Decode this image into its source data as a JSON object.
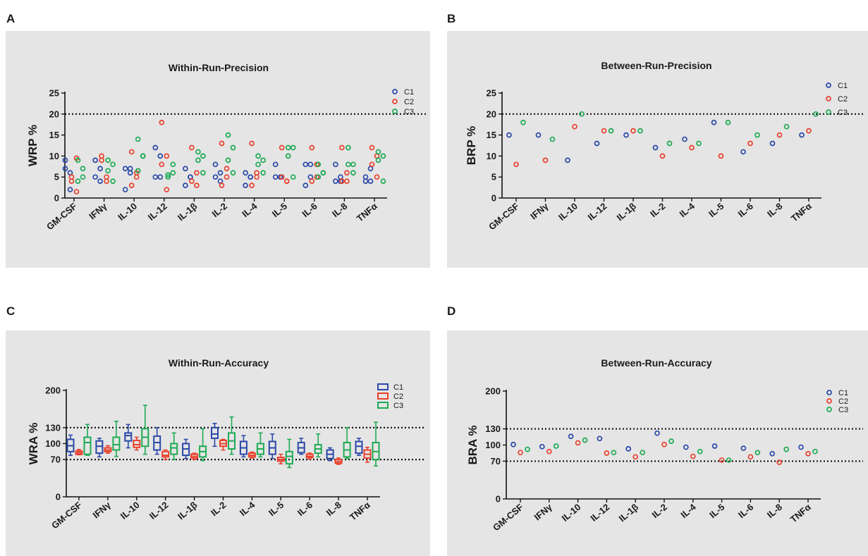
{
  "panel_labels": [
    "A",
    "B",
    "C",
    "D"
  ],
  "colors": {
    "C1": "#2a48a8",
    "C2": "#e8412c",
    "C3": "#1eaa55"
  },
  "chart_data": [
    {
      "panel": "A",
      "type": "scatter",
      "title": "Within-Run-Precision",
      "ylabel": "WRP %",
      "xlabel": "",
      "ylim": [
        0,
        25
      ],
      "yticks": [
        0,
        5,
        10,
        15,
        20,
        25
      ],
      "reference_lines": [
        20
      ],
      "legend_position": "top-right",
      "categories": [
        "GM-CSF",
        "IFNγ",
        "IL-10",
        "IL-12",
        "IL-1β",
        "IL-2",
        "IL-4",
        "IL-5",
        "IL-6",
        "IL-8",
        "TNFα"
      ],
      "series": [
        {
          "name": "C1",
          "values": [
            [
              7,
              6,
              9,
              2
            ],
            [
              9,
              7,
              5,
              4
            ],
            [
              7,
              6,
              2,
              7
            ],
            [
              12,
              10,
              5,
              5
            ],
            [
              7,
              5,
              3,
              5
            ],
            [
              8,
              6,
              5,
              4
            ],
            [
              6,
              5,
              3,
              5
            ],
            [
              8,
              5,
              5,
              5
            ],
            [
              8,
              5,
              3,
              8
            ],
            [
              8,
              5,
              4,
              4
            ],
            [
              5,
              7,
              4,
              4
            ]
          ]
        },
        {
          "name": "C2",
          "values": [
            [
              5,
              9.5,
              4,
              1.5
            ],
            [
              9,
              4,
              10,
              5
            ],
            [
              11,
              5,
              3,
              6
            ],
            [
              18,
              10,
              8,
              2
            ],
            [
              12,
              6,
              4,
              3
            ],
            [
              13,
              7,
              3,
              5
            ],
            [
              13,
              6,
              3,
              5
            ],
            [
              12,
              4,
              5,
              4
            ],
            [
              12,
              8,
              4,
              5
            ],
            [
              12,
              6,
              4,
              4
            ],
            [
              12,
              10,
              8,
              5
            ]
          ]
        },
        {
          "name": "C3",
          "values": [
            [
              9,
              7,
              4,
              5
            ],
            [
              9,
              8,
              6.5,
              4
            ],
            [
              14,
              10,
              6.5,
              10
            ],
            [
              5.5,
              8,
              5,
              6
            ],
            [
              11,
              10,
              9,
              6
            ],
            [
              15,
              12,
              9,
              6
            ],
            [
              10,
              9,
              8,
              6
            ],
            [
              12,
              12,
              10,
              5
            ],
            [
              8,
              6,
              5,
              6
            ],
            [
              12,
              8,
              8,
              6
            ],
            [
              11,
              10,
              9,
              4
            ]
          ]
        }
      ]
    },
    {
      "panel": "B",
      "type": "scatter",
      "title": "Between-Run-Precision",
      "ylabel": "BRP %",
      "xlabel": "",
      "ylim": [
        0,
        25
      ],
      "yticks": [
        0,
        5,
        10,
        15,
        20,
        25
      ],
      "reference_lines": [
        20
      ],
      "legend_position": "top-right",
      "categories": [
        "GM-CSF",
        "IFNγ",
        "IL-10",
        "IL-12",
        "IL-1β",
        "IL-2",
        "IL-4",
        "IL-5",
        "IL-6",
        "IL-8",
        "TNFα"
      ],
      "series": [
        {
          "name": "C1",
          "values": [
            15,
            15,
            9,
            13,
            15,
            12,
            14,
            18,
            11,
            13,
            15
          ]
        },
        {
          "name": "C2",
          "values": [
            8,
            9,
            17,
            16,
            16,
            10,
            12,
            10,
            13,
            15,
            16
          ]
        },
        {
          "name": "C3",
          "values": [
            18,
            14,
            20,
            16,
            16,
            13,
            13,
            18,
            15,
            17,
            20
          ]
        }
      ]
    },
    {
      "panel": "C",
      "type": "box",
      "title": "Within-Run-Accuracy",
      "ylabel": "WRA %",
      "xlabel": "",
      "ylim": [
        0,
        200
      ],
      "yticks": [
        0,
        70,
        100,
        130,
        200
      ],
      "reference_lines": [
        70,
        130
      ],
      "legend_position": "top-right",
      "categories": [
        "GM-CSF",
        "IFNγ",
        "IL-10",
        "IL-12",
        "IL-1β",
        "IL-2",
        "IL-4",
        "IL-5",
        "IL-6",
        "IL-8",
        "TNFα"
      ],
      "series": [
        {
          "name": "C1",
          "min": [
            78,
            75,
            92,
            80,
            72,
            95,
            75,
            72,
            80,
            68,
            78
          ],
          "q1": [
            85,
            82,
            105,
            88,
            78,
            110,
            80,
            80,
            83,
            72,
            82
          ],
          "median": [
            96,
            95,
            115,
            102,
            90,
            118,
            92,
            92,
            92,
            80,
            95
          ],
          "q3": [
            108,
            105,
            120,
            114,
            100,
            130,
            104,
            104,
            102,
            88,
            104
          ],
          "max": [
            116,
            110,
            136,
            130,
            108,
            138,
            115,
            118,
            110,
            92,
            110
          ]
        },
        {
          "name": "C2",
          "min": [
            79,
            82,
            88,
            70,
            70,
            88,
            73,
            62,
            71,
            61,
            65
          ],
          "q1": [
            80,
            85,
            93,
            75,
            73,
            95,
            75,
            67,
            74,
            63,
            73
          ],
          "median": [
            83,
            88,
            98,
            78,
            76,
            100,
            78,
            70,
            76,
            66,
            80
          ],
          "q3": [
            86,
            92,
            106,
            85,
            80,
            106,
            82,
            74,
            80,
            70,
            88
          ],
          "max": [
            89,
            96,
            112,
            88,
            82,
            108,
            84,
            80,
            82,
            73,
            93
          ]
        },
        {
          "name": "C3",
          "min": [
            78,
            76,
            80,
            70,
            68,
            80,
            75,
            55,
            75,
            72,
            58
          ],
          "q1": [
            80,
            88,
            95,
            80,
            75,
            90,
            80,
            62,
            82,
            75,
            70
          ],
          "median": [
            102,
            98,
            112,
            92,
            85,
            105,
            90,
            76,
            90,
            88,
            85
          ],
          "q3": [
            112,
            112,
            128,
            100,
            95,
            120,
            100,
            85,
            98,
            102,
            102
          ],
          "max": [
            136,
            142,
            172,
            120,
            128,
            150,
            120,
            108,
            118,
            130,
            140
          ]
        }
      ]
    },
    {
      "panel": "D",
      "type": "scatter",
      "title": "Between-Run-Accuracy",
      "ylabel": "BRA %",
      "xlabel": "",
      "ylim": [
        0,
        200
      ],
      "yticks": [
        0,
        70,
        100,
        130,
        200
      ],
      "reference_lines": [
        70,
        130
      ],
      "legend_position": "top-right",
      "categories": [
        "GM-CSF",
        "IFNγ",
        "IL-10",
        "IL-12",
        "IL-1β",
        "IL-2",
        "IL-4",
        "IL-5",
        "IL-6",
        "IL-8",
        "TNFα"
      ],
      "series": [
        {
          "name": "C1",
          "values": [
            101,
            97,
            116,
            112,
            93,
            122,
            96,
            98,
            94,
            84,
            96
          ]
        },
        {
          "name": "C2",
          "values": [
            86,
            88,
            104,
            85,
            78,
            101,
            79,
            72,
            78,
            68,
            84
          ]
        },
        {
          "name": "C3",
          "values": [
            92,
            98,
            109,
            86,
            86,
            107,
            88,
            72,
            86,
            92,
            88
          ]
        }
      ]
    }
  ]
}
